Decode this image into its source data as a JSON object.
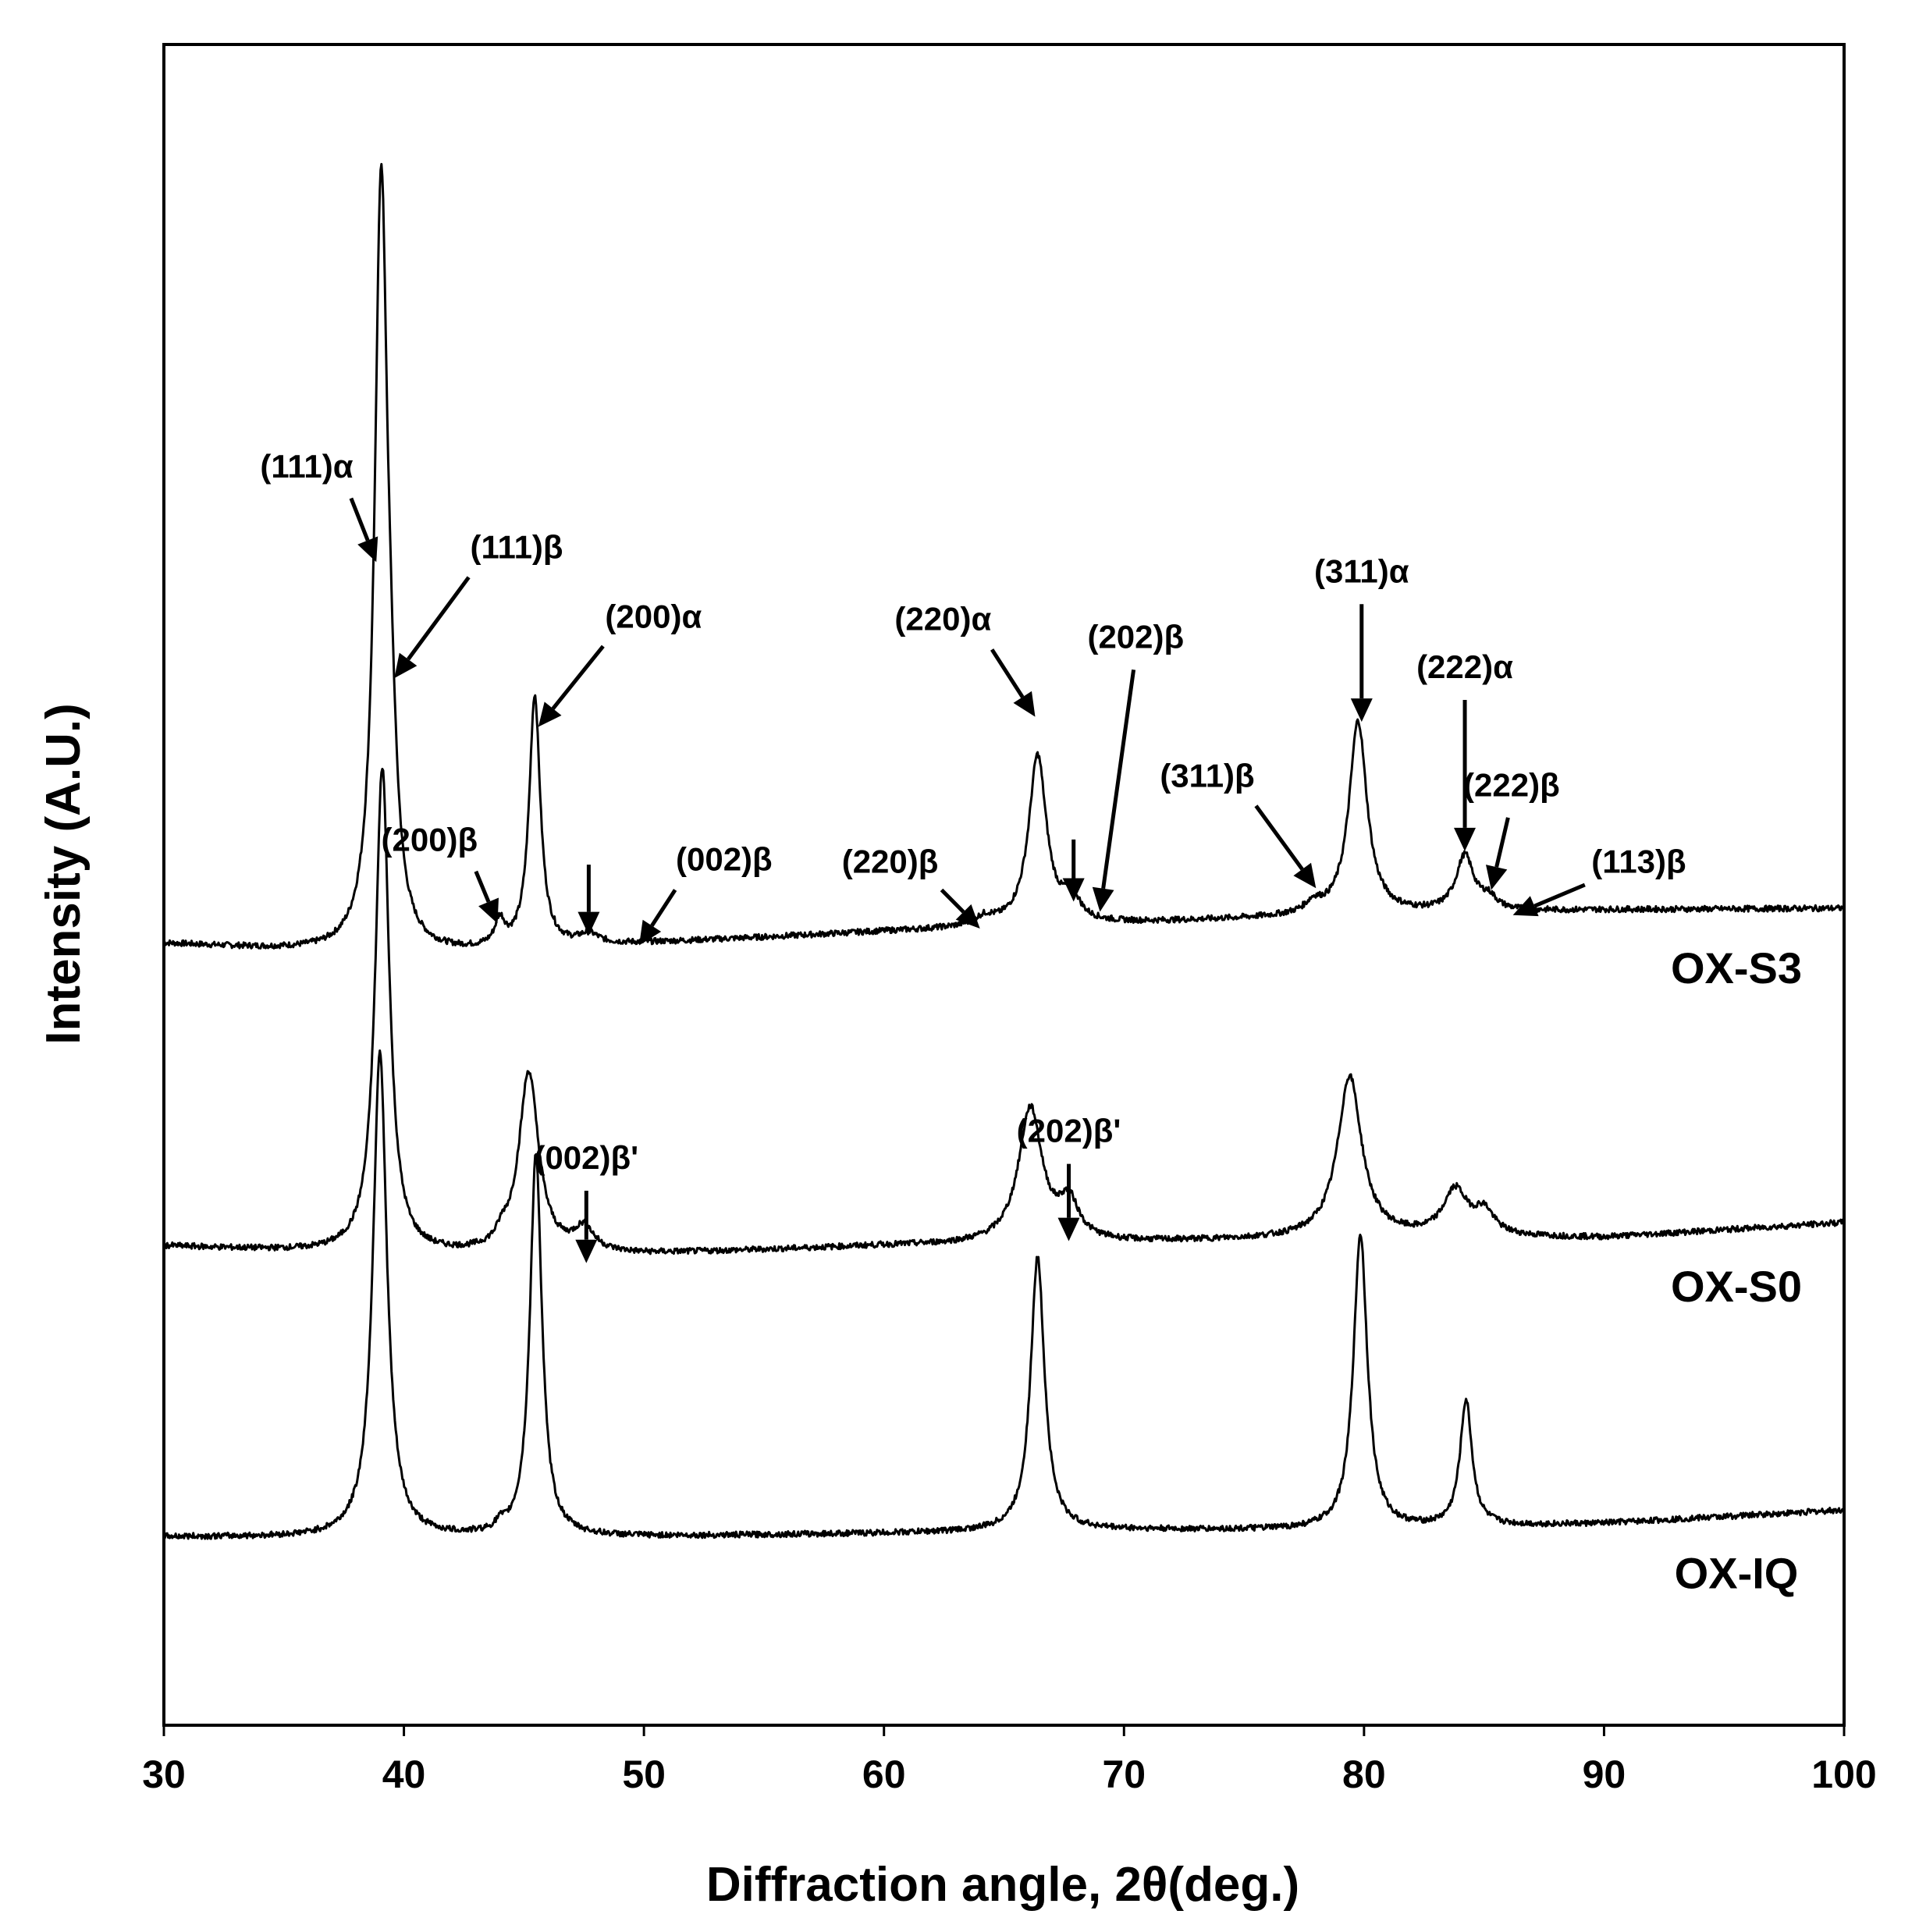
{
  "chart_data": {
    "type": "line",
    "title": "",
    "xlabel": "Diffraction angle, 2θ(deg.)",
    "ylabel": "Intensity (A.U.)",
    "xlim": [
      30,
      100
    ],
    "ylim": [
      0,
      1
    ],
    "xticks": [
      30,
      40,
      50,
      60,
      70,
      80,
      90,
      100
    ],
    "grid": false,
    "series": [
      {
        "name": "OX-S3",
        "offset": 0.465,
        "baseline": [
          [
            30,
            0
          ],
          [
            40,
            -0.008
          ],
          [
            50,
            0
          ],
          [
            60,
            0.007
          ],
          [
            70,
            0.012
          ],
          [
            80,
            0.017
          ],
          [
            90,
            0.02
          ],
          [
            100,
            0.021
          ]
        ],
        "peaks": [
          {
            "x": 39.05,
            "h": 0.45,
            "w": 0.32
          },
          {
            "x": 39.45,
            "h": 0.06,
            "w": 0.3
          },
          {
            "x": 44.0,
            "h": 0.015,
            "w": 0.25
          },
          {
            "x": 45.45,
            "h": 0.15,
            "w": 0.28
          },
          {
            "x": 47.7,
            "h": 0.006,
            "w": 0.5
          },
          {
            "x": 64.2,
            "h": 0.005,
            "w": 0.5
          },
          {
            "x": 66.4,
            "h": 0.101,
            "w": 0.45
          },
          {
            "x": 67.8,
            "h": 0.015,
            "w": 0.4
          },
          {
            "x": 77.9,
            "h": 0.006,
            "w": 0.4
          },
          {
            "x": 79.75,
            "h": 0.115,
            "w": 0.45
          },
          {
            "x": 84.2,
            "h": 0.033,
            "w": 0.45
          },
          {
            "x": 85.2,
            "h": 0.007,
            "w": 0.4
          }
        ]
      },
      {
        "name": "OX-S0",
        "offset": 0.285,
        "baseline": [
          [
            30,
            0
          ],
          [
            40,
            -0.006
          ],
          [
            50,
            -0.005
          ],
          [
            60,
            0
          ],
          [
            70,
            0.002
          ],
          [
            80,
            0.005
          ],
          [
            90,
            0.005
          ],
          [
            100,
            0.014
          ]
        ],
        "peaks": [
          {
            "x": 39.1,
            "h": 0.29,
            "w": 0.35
          },
          {
            "x": 44.1,
            "h": 0.006,
            "w": 0.25
          },
          {
            "x": 45.2,
            "h": 0.108,
            "w": 0.5
          },
          {
            "x": 47.5,
            "h": 0.014,
            "w": 0.5
          },
          {
            "x": 66.1,
            "h": 0.08,
            "w": 0.6
          },
          {
            "x": 67.7,
            "h": 0.022,
            "w": 0.5
          },
          {
            "x": 79.4,
            "h": 0.096,
            "w": 0.6
          },
          {
            "x": 83.8,
            "h": 0.027,
            "w": 0.6
          },
          {
            "x": 85.0,
            "h": 0.014,
            "w": 0.5
          }
        ]
      },
      {
        "name": "OX-IQ",
        "offset": 0.112,
        "baseline": [
          [
            30,
            0
          ],
          [
            40,
            -0.001
          ],
          [
            50,
            0
          ],
          [
            60,
            0.002
          ],
          [
            70,
            0.004
          ],
          [
            80,
            0.004
          ],
          [
            90,
            0.008
          ],
          [
            100,
            0.016
          ]
        ],
        "peaks": [
          {
            "x": 39.0,
            "h": 0.29,
            "w": 0.35
          },
          {
            "x": 44.0,
            "h": 0.004,
            "w": 0.2
          },
          {
            "x": 45.5,
            "h": 0.228,
            "w": 0.3
          },
          {
            "x": 66.4,
            "h": 0.163,
            "w": 0.35
          },
          {
            "x": 79.85,
            "h": 0.176,
            "w": 0.35
          },
          {
            "x": 84.25,
            "h": 0.075,
            "w": 0.3
          }
        ]
      }
    ],
    "annotations": [
      {
        "label": "(111)α",
        "arrow_from": [
          37.8,
          0.73
        ],
        "arrow_to": [
          38.85,
          0.692
        ]
      },
      {
        "label": "(111)β",
        "arrow_from": [
          42.7,
          0.683
        ],
        "arrow_to": [
          39.6,
          0.623
        ]
      },
      {
        "label": "(200)α",
        "arrow_from": [
          48.3,
          0.642
        ],
        "arrow_to": [
          45.6,
          0.594
        ]
      },
      {
        "label": "(200)β",
        "arrow_from": [
          43.0,
          0.508
        ],
        "arrow_to": [
          43.9,
          0.477
        ]
      },
      {
        "label": "",
        "arrow_from": [
          47.7,
          0.512
        ],
        "arrow_to": [
          47.7,
          0.47
        ]
      },
      {
        "label": "(002)β",
        "arrow_from": [
          51.3,
          0.497
        ],
        "arrow_to": [
          49.8,
          0.464
        ]
      },
      {
        "label": "(220)β",
        "arrow_from": [
          62.4,
          0.497
        ],
        "arrow_to": [
          64.0,
          0.474
        ]
      },
      {
        "label": "(220)α",
        "arrow_from": [
          64.5,
          0.64
        ],
        "arrow_to": [
          66.3,
          0.6
        ]
      },
      {
        "label": "(202)β",
        "arrow_from": [
          70.4,
          0.628
        ],
        "arrow_to": [
          69.0,
          0.484
        ]
      },
      {
        "label": "",
        "arrow_from": [
          67.9,
          0.527
        ],
        "arrow_to": [
          67.9,
          0.49
        ]
      },
      {
        "label": "(311)α",
        "arrow_from": [
          79.9,
          0.667
        ],
        "arrow_to": [
          79.9,
          0.597
        ]
      },
      {
        "label": "(311)β",
        "arrow_from": [
          75.5,
          0.547
        ],
        "arrow_to": [
          78.0,
          0.498
        ]
      },
      {
        "label": "(222)α",
        "arrow_from": [
          84.2,
          0.61
        ],
        "arrow_to": [
          84.2,
          0.52
        ]
      },
      {
        "label": "(222)β",
        "arrow_from": [
          86.0,
          0.54
        ],
        "arrow_to": [
          85.3,
          0.497
        ]
      },
      {
        "label": "(113)β",
        "arrow_from": [
          89.2,
          0.5
        ],
        "arrow_to": [
          86.2,
          0.482
        ]
      },
      {
        "label": "(002)β'",
        "arrow_from": [
          47.6,
          0.318
        ],
        "arrow_to": [
          47.6,
          0.275
        ]
      },
      {
        "label": "(202)β'",
        "arrow_from": [
          67.7,
          0.334
        ],
        "arrow_to": [
          67.7,
          0.288
        ]
      }
    ]
  }
}
